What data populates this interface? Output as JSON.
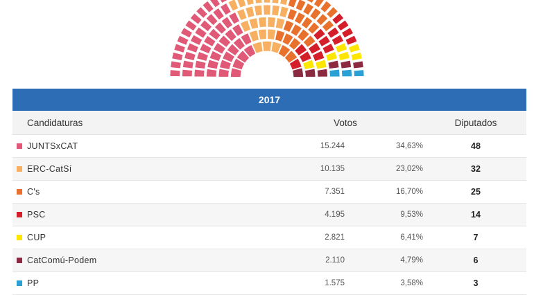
{
  "chart_data": {
    "type": "table",
    "title": "2017",
    "columns": {
      "name": "Candidaturas",
      "votes": "Votos",
      "seats": "Diputados"
    },
    "rows": [
      {
        "party": "JUNTSxCAT",
        "votes": "15.244",
        "pct": "34,63%",
        "seats": 48,
        "color": "#e05a77"
      },
      {
        "party": "ERC-CatSí",
        "votes": "10.135",
        "pct": "23,02%",
        "seats": 32,
        "color": "#f7b062"
      },
      {
        "party": "C's",
        "votes": "7.351",
        "pct": "16,70%",
        "seats": 25,
        "color": "#e8712d"
      },
      {
        "party": "PSC",
        "votes": "4.195",
        "pct": "9,53%",
        "seats": 14,
        "color": "#d41f2a"
      },
      {
        "party": "CUP",
        "votes": "2.821",
        "pct": "6,41%",
        "seats": 7,
        "color": "#ffe600"
      },
      {
        "party": "CatComú-Podem",
        "votes": "2.110",
        "pct": "4,79%",
        "seats": 6,
        "color": "#8c2a41"
      },
      {
        "party": "PP",
        "votes": "1.575",
        "pct": "3,58%",
        "seats": 3,
        "color": "#2aa0d4"
      }
    ],
    "hemicycle": {
      "type": "parliament",
      "total_seats": 135
    }
  }
}
